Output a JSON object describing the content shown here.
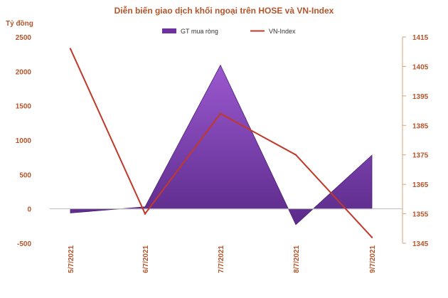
{
  "chart_data": {
    "type": "area+line",
    "title": "Diễn biến giao dịch khối ngoại trên HOSE và VN-Index",
    "ylabel_left": "Tỷ đồng",
    "categories": [
      "5/7/2021",
      "6/7/2021",
      "7/7/2021",
      "8/7/2021",
      "9/7/2021"
    ],
    "y_left": {
      "min": -500,
      "max": 2500,
      "ticks": [
        "2500",
        "2000",
        "1500",
        "1000",
        "500",
        "0",
        "-500"
      ],
      "tick_values": [
        2500,
        2000,
        1500,
        1000,
        500,
        0,
        -500
      ]
    },
    "y_right": {
      "min": 1345,
      "max": 1415,
      "ticks": [
        "1415",
        "1405",
        "1395",
        "1385",
        "1375",
        "1365",
        "1355",
        "1345"
      ],
      "tick_values": [
        1415,
        1405,
        1395,
        1385,
        1375,
        1365,
        1355,
        1345
      ]
    },
    "series": [
      {
        "name": "GT mua ròng",
        "type": "area",
        "axis": "left",
        "color": "#7030a0",
        "values": [
          -60,
          30,
          2090,
          -230,
          780
        ]
      },
      {
        "name": "VN-Index",
        "type": "line",
        "axis": "right",
        "color": "#c0392b",
        "values": [
          1411,
          1355,
          1389,
          1375,
          1347
        ]
      }
    ],
    "legend": "top-center"
  }
}
